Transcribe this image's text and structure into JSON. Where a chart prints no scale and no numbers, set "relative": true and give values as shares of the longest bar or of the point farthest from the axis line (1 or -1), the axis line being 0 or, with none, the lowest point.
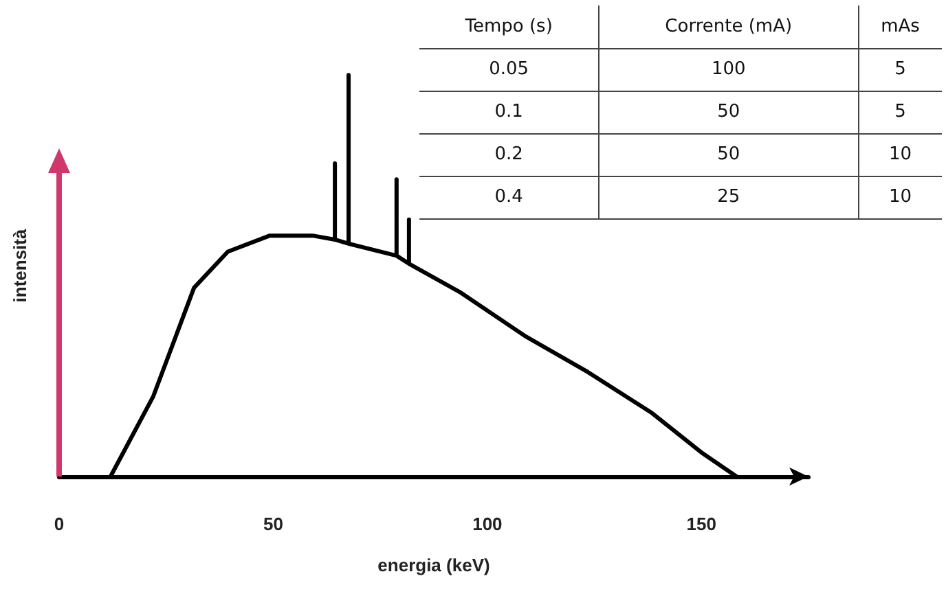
{
  "chart_data": [
    {
      "type": "line",
      "relative": true,
      "xlabel": "energia (keV)",
      "ylabel": "intensità",
      "xlim": [
        0,
        175
      ],
      "xticks": [
        0,
        50,
        100,
        150
      ],
      "grid": false,
      "marker": "none",
      "line_style": "solid",
      "series": [
        {
          "color": "#000000",
          "x": [
            12,
            22,
            31.5,
            39.4,
            49.2,
            59.2,
            64.4,
            64.4,
            64.4,
            67.6,
            67.6,
            67.6,
            78.8,
            78.8,
            78.8,
            81.7,
            81.7,
            81.7,
            93.5,
            108.8,
            123.5,
            138.2,
            150,
            158.2
          ],
          "values": [
            0,
            0.2,
            0.47,
            0.56,
            0.6,
            0.6,
            0.59,
            0.78,
            0.59,
            0.58,
            1,
            0.58,
            0.55,
            0.74,
            0.55,
            0.53,
            0.64,
            0.53,
            0.46,
            0.35,
            0.26,
            0.16,
            0.06,
            0
          ]
        }
      ]
    },
    {
      "type": "other",
      "categories": [
        "Tempo (s)",
        "Corrente (mA)",
        "mAs"
      ],
      "cell_labels": [
        [
          "0.05",
          "100",
          "5"
        ],
        [
          "0.1",
          "50",
          "5"
        ],
        [
          "0.2",
          "50",
          "10"
        ],
        [
          "0.4",
          "25",
          "10"
        ]
      ]
    }
  ]
}
